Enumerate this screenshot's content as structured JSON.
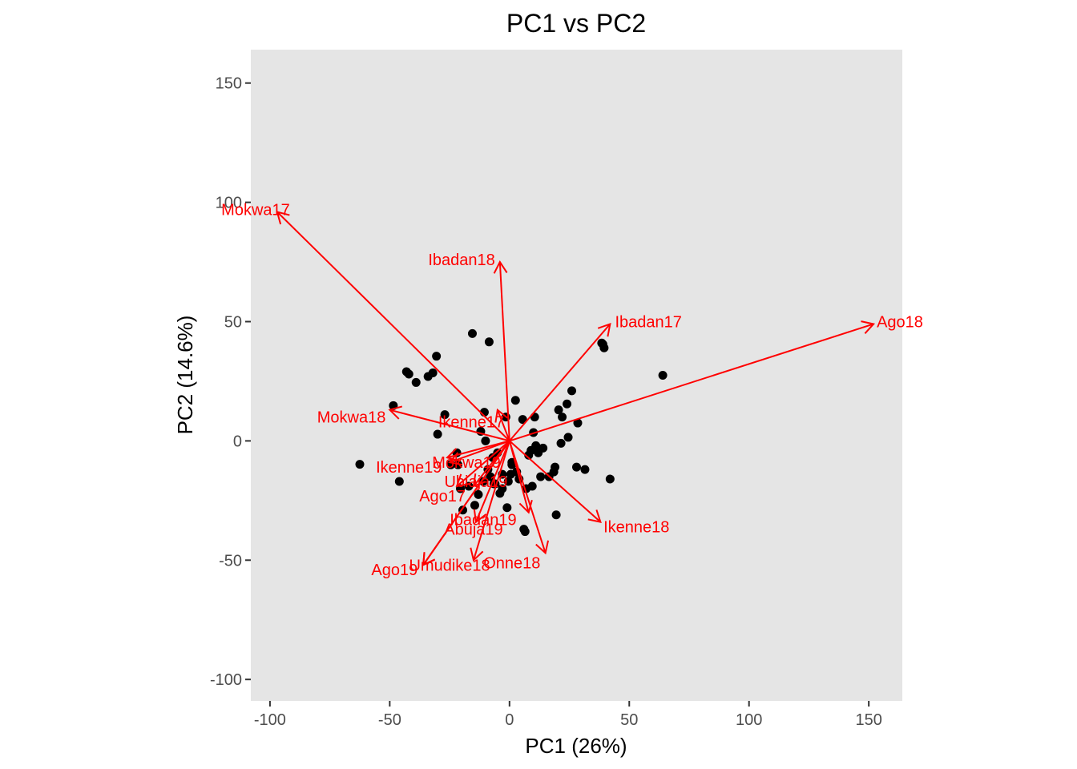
{
  "chart_data": {
    "type": "scatter",
    "title": "PC1 vs PC2",
    "xlabel": "PC1 (26%)",
    "ylabel": "PC2 (14.6%)",
    "xlim": [
      -108,
      164
    ],
    "ylim": [
      -109,
      164
    ],
    "xticks": [
      -100,
      -50,
      0,
      50,
      100,
      150
    ],
    "yticks": [
      -100,
      -50,
      0,
      50,
      100,
      150
    ],
    "grid": false,
    "panel_color": "#e5e5e5",
    "point_color": "#000000",
    "arrow_color": "#ff0000",
    "points": [
      [
        -62.5,
        -9.8
      ],
      [
        -46,
        -17
      ],
      [
        -48.5,
        14.8
      ],
      [
        -43,
        29
      ],
      [
        -42,
        28
      ],
      [
        -39,
        24.5
      ],
      [
        -34,
        27
      ],
      [
        -32,
        28.5
      ],
      [
        -30.5,
        35.5
      ],
      [
        -30,
        2.8
      ],
      [
        -27,
        11
      ],
      [
        -24.5,
        -10
      ],
      [
        -22,
        -5
      ],
      [
        -21.5,
        -10
      ],
      [
        -20.5,
        -20
      ],
      [
        -19.5,
        -29
      ],
      [
        -17,
        -19
      ],
      [
        -15.5,
        45
      ],
      [
        -14.5,
        -27
      ],
      [
        -13,
        -22.5
      ],
      [
        -12,
        4
      ],
      [
        -11,
        -17
      ],
      [
        -10.5,
        12
      ],
      [
        -10,
        0
      ],
      [
        -8.5,
        41.5
      ],
      [
        -8,
        -15
      ],
      [
        -7,
        -7
      ],
      [
        -6.5,
        -18
      ],
      [
        -5,
        -5
      ],
      [
        -4,
        -22
      ],
      [
        -3,
        -14
      ],
      [
        -1.5,
        10
      ],
      [
        -1,
        -28
      ],
      [
        -0.5,
        -17
      ],
      [
        0.5,
        -14
      ],
      [
        1,
        -10
      ],
      [
        2.5,
        17
      ],
      [
        4,
        -16
      ],
      [
        5.5,
        9
      ],
      [
        6,
        -37
      ],
      [
        6.5,
        -38
      ],
      [
        7,
        -20
      ],
      [
        8,
        -6
      ],
      [
        9,
        -4
      ],
      [
        9.5,
        -19
      ],
      [
        10,
        3.5
      ],
      [
        10.5,
        10
      ],
      [
        11,
        -2
      ],
      [
        12,
        -5
      ],
      [
        13,
        -15
      ],
      [
        14,
        -3
      ],
      [
        16.5,
        -15
      ],
      [
        18.5,
        -13
      ],
      [
        19,
        -11
      ],
      [
        19.5,
        -31
      ],
      [
        20.5,
        13
      ],
      [
        21.5,
        -1
      ],
      [
        22,
        10
      ],
      [
        24,
        15.5
      ],
      [
        24.5,
        1.5
      ],
      [
        26,
        21
      ],
      [
        28,
        -11
      ],
      [
        28.5,
        7.5
      ],
      [
        31.5,
        -12
      ],
      [
        38.5,
        41
      ],
      [
        39,
        40.5
      ],
      [
        39.5,
        39
      ],
      [
        42,
        -16
      ],
      [
        64,
        27.5
      ],
      [
        -6,
        -18
      ],
      [
        -3,
        -20
      ],
      [
        1,
        -9
      ],
      [
        3,
        -13
      ],
      [
        -9,
        -12
      ]
    ],
    "arrows": [
      {
        "label": "Mokwa17",
        "x": -97,
        "y": 96
      },
      {
        "label": "Ibadan18",
        "x": -4,
        "y": 75
      },
      {
        "label": "Ibadan17",
        "x": 42,
        "y": 49
      },
      {
        "label": "Ago18",
        "x": 152,
        "y": 49
      },
      {
        "label": "Mokwa18",
        "x": -50,
        "y": 13
      },
      {
        "label": "Ikenne17",
        "x": -5,
        "y": 13
      },
      {
        "label": "Ikenne19",
        "x": -25,
        "y": -9
      },
      {
        "label": "Mokwa19",
        "x": -26,
        "y": -7
      },
      {
        "label": "Ubiaja19",
        "x": -15,
        "y": -19
      },
      {
        "label": "Ago17",
        "x": -22,
        "y": -19
      },
      {
        "label": "Ibadan19",
        "x": 8,
        "y": -30
      },
      {
        "label": "Abuja19",
        "x": -14,
        "y": -34
      },
      {
        "label": "Ikenne18",
        "x": 38,
        "y": -34
      },
      {
        "label": "Umudike18",
        "x": -36,
        "y": -52
      },
      {
        "label": "Ago19",
        "x": -36,
        "y": -52
      },
      {
        "label": "Onne18",
        "x": -15,
        "y": -50
      },
      {
        "label": "Onne18",
        "x": 15,
        "y": -47
      }
    ],
    "arrow_labels": [
      {
        "text": "Mokwa17",
        "x": -106,
        "y": 97
      },
      {
        "text": "Ibadan18",
        "x": -20,
        "y": 76
      },
      {
        "text": "Ibadan17",
        "x": 58,
        "y": 50
      },
      {
        "text": "Ago18",
        "x": 163,
        "y": 50
      },
      {
        "text": "Mokwa18",
        "x": -66,
        "y": 10
      },
      {
        "text": "Ikenne17",
        "x": -16,
        "y": 8
      },
      {
        "text": "Ikenne19",
        "x": -42,
        "y": -11
      },
      {
        "text": "Mokwa19",
        "x": -18,
        "y": -9
      },
      {
        "text": "Ubiaja19",
        "x": -14,
        "y": -17
      },
      {
        "text": "Ago17",
        "x": -28,
        "y": -23
      },
      {
        "text": "Ibadan19",
        "x": -11,
        "y": -33
      },
      {
        "text": "Abuja19",
        "x": -15,
        "y": -37
      },
      {
        "text": "Ikenne18",
        "x": 53,
        "y": -36
      },
      {
        "text": "Umudike18",
        "x": -25,
        "y": -52
      },
      {
        "text": "Ago19",
        "x": -48,
        "y": -54
      },
      {
        "text": "Onne18",
        "x": 1,
        "y": -51
      }
    ]
  }
}
